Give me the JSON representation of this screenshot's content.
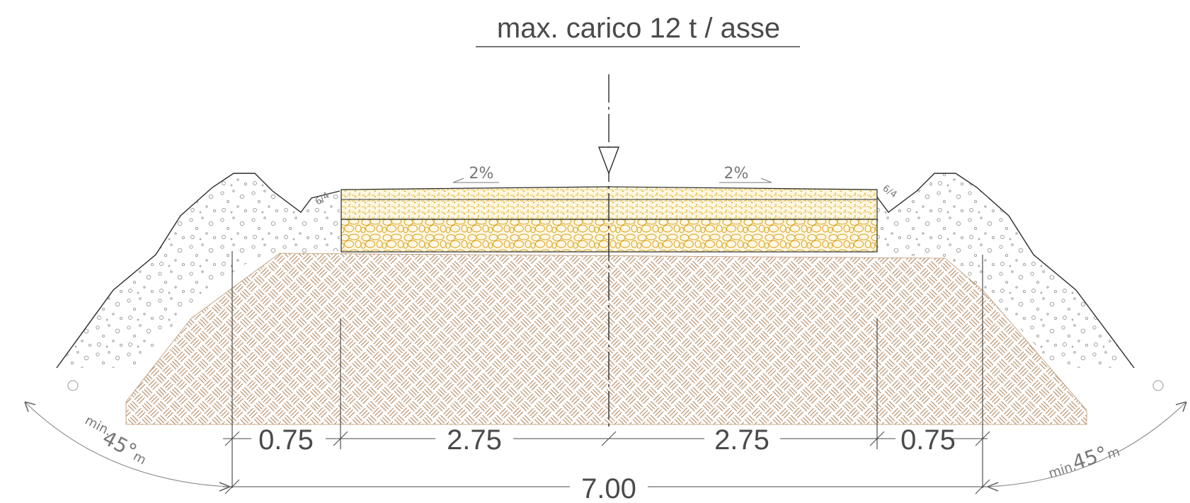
{
  "title": "max. carico 12 t / asse",
  "slopes": {
    "left": "2%",
    "right": "2%"
  },
  "side_slope_ratio": {
    "left": "6/4",
    "right": "6/4"
  },
  "angle_min": {
    "left_prefix": "min.",
    "left_value": "45°",
    "left_suffix": "m",
    "right_prefix": "min.",
    "right_value": "45°",
    "right_suffix": "m"
  },
  "dimensions": {
    "segments": [
      "0.75",
      "2.75",
      "2.75",
      "0.75"
    ],
    "total": "7.00"
  },
  "colors": {
    "line": "#2b2b2b",
    "gravel_fill": "#f6f6f6",
    "gravel_dots": "#9a9a9a",
    "wearing_course": "#e8c24a",
    "base_course": "#d9a21a",
    "base_fill": "#fbf3d8",
    "subgrade_hatch": "#b8906a",
    "dim_line": "#666666"
  }
}
